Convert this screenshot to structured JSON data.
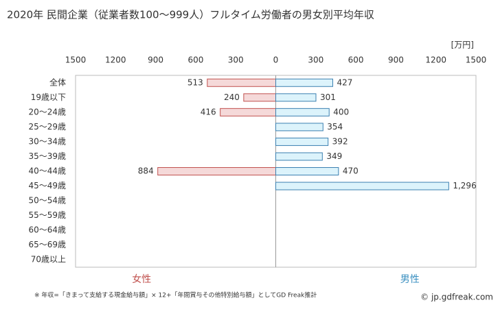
{
  "chart_data": {
    "type": "butterfly-bar",
    "title": "2020年 民間企業（従業者数100～999人）フルタイム労働者の男女別平均年収",
    "unit": "[万円]",
    "note": "※ 年収=「きまって支給する現金給与額」× 12+「年間賞与その他特別給与額」としてGD Freak推計",
    "credit": "© jp.gdfreak.com",
    "categories": [
      "全体",
      "19歳以下",
      "20～24歳",
      "25～29歳",
      "30～34歳",
      "35～39歳",
      "40～44歳",
      "45～49歳",
      "50～54歳",
      "55～59歳",
      "60～64歳",
      "65～69歳",
      "70歳以上"
    ],
    "series": [
      {
        "name": "女性",
        "side": "left",
        "color": "#f5d9d9",
        "edge": "#c0504d",
        "label_color": "#c0504d",
        "values": [
          513,
          240,
          416,
          null,
          null,
          null,
          884,
          null,
          null,
          null,
          null,
          null,
          null
        ]
      },
      {
        "name": "男性",
        "side": "right",
        "color": "#dcf3fb",
        "edge": "#3a7fb0",
        "label_color": "#3a8fc0",
        "values": [
          427,
          301,
          400,
          354,
          392,
          349,
          470,
          1296,
          null,
          null,
          null,
          null,
          null
        ],
        "value_labels": [
          "427",
          "301",
          "400",
          "354",
          "392",
          "349",
          "470",
          "1,296",
          null,
          null,
          null,
          null,
          null
        ]
      }
    ],
    "xlim": [
      0,
      1500
    ],
    "xticks": [
      0,
      300,
      600,
      900,
      1200,
      1500
    ]
  }
}
